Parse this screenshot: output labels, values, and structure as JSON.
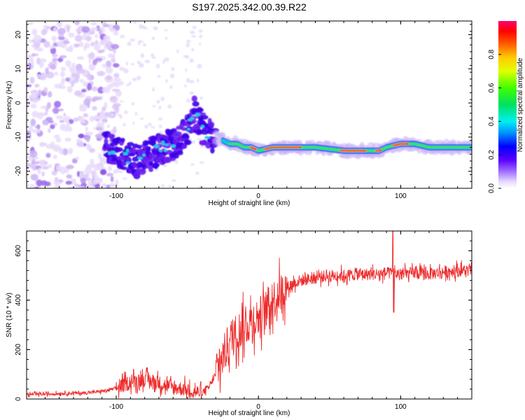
{
  "title": "S197.2025.342.00.39.R22",
  "chart_data": [
    {
      "type": "heatmap",
      "xlabel": "Height of straight line (km)",
      "ylabel": "Frequency (Hz)",
      "xlim": [
        -163,
        150
      ],
      "ylim": [
        -25,
        24
      ],
      "xticks": [
        -100,
        0,
        100
      ],
      "xtick_labels": [
        "-100",
        "0",
        "100"
      ],
      "yticks": [
        -20,
        -10,
        0,
        10,
        20
      ],
      "ytick_labels": [
        "-20",
        "-10",
        "0",
        "10",
        "20"
      ],
      "colorbar": {
        "label": "Normalized spectral amplitude",
        "range": [
          0,
          1
        ],
        "ticks": [
          0,
          0.2,
          0.4,
          0.6,
          0.8
        ],
        "tick_labels": [
          "0.0",
          "0.2",
          "0.4",
          "0.6",
          "0.8"
        ]
      },
      "ridge": {
        "x": [
          -105,
          -95,
          -85,
          -75,
          -65,
          -55,
          -50,
          -45,
          -40,
          -35,
          -30,
          -25,
          -20,
          -15,
          -10,
          -5,
          0,
          10,
          20,
          30,
          40,
          50,
          60,
          70,
          80,
          85,
          90,
          100,
          110,
          120,
          130,
          140,
          150
        ],
        "y": [
          -13,
          -15,
          -17,
          -15,
          -13,
          -11,
          -8,
          -3,
          -7,
          -9,
          -10,
          -11,
          -12,
          -12,
          -13,
          -13,
          -14,
          -13,
          -13,
          -13,
          -13,
          -13.5,
          -14,
          -14,
          -14,
          -14,
          -13,
          -12,
          -12,
          -13,
          -13,
          -13,
          -13
        ]
      }
    },
    {
      "type": "line",
      "xlabel": "Height of straight line (km)",
      "ylabel": "SNR (10 * v/v)",
      "xlim": [
        -163,
        150
      ],
      "ylim": [
        0,
        680
      ],
      "xticks": [
        -100,
        0,
        100
      ],
      "xtick_labels": [
        "-100",
        "0",
        "100"
      ],
      "yticks": [
        0,
        200,
        400,
        600
      ],
      "ytick_labels": [
        "0",
        "200",
        "400",
        "600"
      ],
      "series": [
        {
          "name": "SNR",
          "color": "#ee2a2a",
          "x": [
            -163,
            -150,
            -140,
            -120,
            -105,
            -95,
            -90,
            -80,
            -70,
            -60,
            -50,
            -45,
            -40,
            -35,
            -30,
            -25,
            -20,
            -15,
            -10,
            -5,
            0,
            5,
            10,
            15,
            20,
            25,
            30,
            40,
            50,
            60,
            70,
            80,
            90,
            100,
            110,
            120,
            130,
            140,
            150
          ],
          "y": [
            18,
            20,
            22,
            25,
            35,
            55,
            70,
            80,
            65,
            45,
            40,
            30,
            25,
            45,
            100,
            170,
            240,
            270,
            290,
            320,
            330,
            360,
            400,
            430,
            450,
            470,
            480,
            490,
            500,
            500,
            505,
            505,
            510,
            505,
            510,
            505,
            515,
            520,
            520
          ]
        }
      ]
    }
  ]
}
